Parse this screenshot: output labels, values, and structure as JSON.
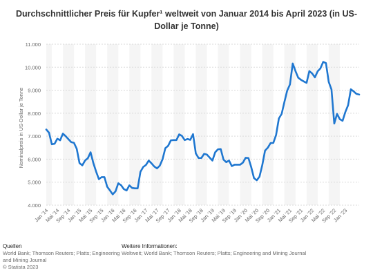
{
  "title": "Durchschnittlicher Preis für Kupfer¹ weltweit von Januar 2014 bis April 2023 (in US-Dollar je Tonne)",
  "footer": {
    "sources_heading": "Quellen",
    "sources_line1": "World Bank; Thomson Reuters; Platts; Engineering",
    "sources_line2": "and Mining Journal",
    "copyright": "© Statista 2023",
    "info_heading": "Weitere Informationen:",
    "info_line1": "Weltweit; World Bank; Thomson Reuters; Platts; Engineering and Mining Journal"
  },
  "chart_data": {
    "type": "line",
    "title": "Durchschnittlicher Preis für Kupfer¹ weltweit von Januar 2014 bis April 2023 (in US-Dollar je Tonne)",
    "ylabel": "Nominalpreis in US-Dollar je Tonne",
    "xlabel": "",
    "ylim": [
      4000,
      11000
    ],
    "yticks": [
      4000,
      5000,
      6000,
      7000,
      8000,
      9000,
      10000,
      11000
    ],
    "ytick_labels": [
      "4.000",
      "5.000",
      "6.000",
      "7.000",
      "8.000",
      "9.000",
      "10.000",
      "11.000"
    ],
    "xtick_labels": [
      "Jan '14",
      "Mai '14",
      "Sep '14",
      "Jan '15",
      "Mai '15",
      "Sep '15",
      "Jan '16",
      "Mai '16",
      "Sep '16",
      "Jan '17",
      "Mai '17",
      "Sep '17",
      "Jan '18",
      "Mai '18",
      "Sep '18",
      "Jan '19",
      "Mai '19",
      "Sep '19",
      "Jan '20",
      "Mai '20",
      "Sep '20",
      "Jan '21",
      "Mai '21",
      "Sep '21",
      "Jan '22",
      "Mai '22",
      "Sep '22",
      "Jan '23"
    ],
    "x_start": "Jan 2014",
    "x_end": "Apr 2023",
    "grid": "horizontal",
    "line_color": "#1f77d0",
    "series": [
      {
        "values": [
          7290,
          7150,
          6650,
          6670,
          6890,
          6820,
          7110,
          7000,
          6870,
          6740,
          6710,
          6450,
          5830,
          5730,
          5940,
          6040,
          6300,
          5830,
          5460,
          5130,
          5220,
          5220,
          4800,
          4640,
          4470,
          4600,
          4950,
          4870,
          4700,
          4640,
          4860,
          4750,
          4730,
          4730,
          5450,
          5660,
          5750,
          5940,
          5820,
          5680,
          5600,
          5720,
          6000,
          6480,
          6580,
          6820,
          6830,
          6830,
          7080,
          7010,
          6830,
          6880,
          6840,
          7090,
          6250,
          6050,
          6050,
          6230,
          6200,
          6070,
          5940,
          6300,
          6430,
          6440,
          5980,
          5870,
          5940,
          5700,
          5760,
          5760,
          5760,
          5850,
          6060,
          6050,
          5660,
          5180,
          5080,
          5240,
          5740,
          6370,
          6500,
          6700,
          6710,
          7060,
          7770,
          7970,
          8490,
          8980,
          9250,
          10160,
          9830,
          9540,
          9450,
          9380,
          9320,
          9830,
          9730,
          9560,
          9820,
          9950,
          10230,
          10180,
          9360,
          9030,
          7550,
          7970,
          7740,
          7670,
          8050,
          8350,
          9040,
          8950,
          8840,
          8810
        ]
      }
    ]
  }
}
